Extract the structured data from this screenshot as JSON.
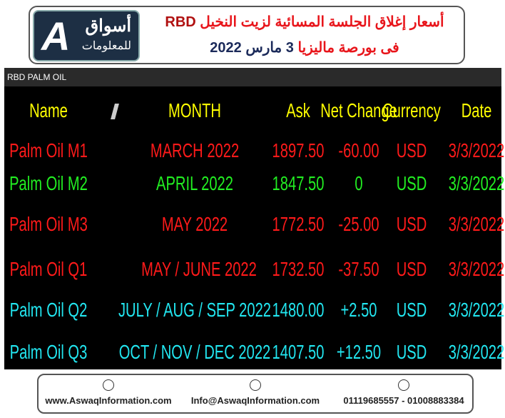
{
  "header": {
    "logo_letter": "A",
    "logo_line1": "أسواق",
    "logo_line2": "للمعلومات",
    "title_line1_a": "أسعار  إغلاق الجلسة المسائية لزيت النخيل",
    "title_line1_b": "RBD",
    "title_line2_a": "فى بورصة ماليزيا",
    "title_line2_b": "3 مارس 2022"
  },
  "table": {
    "label": "RBD PALM OIL",
    "columns": [
      "Name",
      "MONTH",
      "Ask",
      "Net Change",
      "Currency",
      "Date"
    ],
    "header_color": "#ffff00",
    "rows": [
      {
        "color": "#ff1a1a",
        "cells": [
          "Palm Oil M1",
          "MARCH 2022",
          "1897.50",
          "-60.00",
          "USD",
          "3/3/2022"
        ]
      },
      {
        "color": "#22ee22",
        "cells": [
          "Palm Oil M2",
          "APRIL 2022",
          "1847.50",
          "0",
          "USD",
          "3/3/2022"
        ]
      },
      {
        "color": "#ff1a1a",
        "cells": [
          "Palm Oil M3",
          "MAY 2022",
          "1772.50",
          "-25.00",
          "USD",
          "3/3/2022"
        ]
      },
      {
        "color": "#ff1a1a",
        "cells": [
          "Palm Oil Q1",
          "MAY / JUNE 2022",
          "1732.50",
          "-37.50",
          "USD",
          "3/3/2022"
        ]
      },
      {
        "color": "#22e6f0",
        "cells": [
          "Palm Oil Q2",
          "JULY / AUG / SEP 2022",
          "1480.00",
          "+2.50",
          "USD",
          "3/3/2022"
        ]
      },
      {
        "color": "#22e6f0",
        "cells": [
          "Palm Oil Q3",
          "OCT / NOV / DEC 2022",
          "1407.50",
          "+12.50",
          "USD",
          "3/3/2022"
        ]
      }
    ]
  },
  "footer": {
    "website": "www.AswaqInformation.com",
    "email": "Info@AswaqInformation.com",
    "phone": "01119685557 - 01008883384"
  }
}
